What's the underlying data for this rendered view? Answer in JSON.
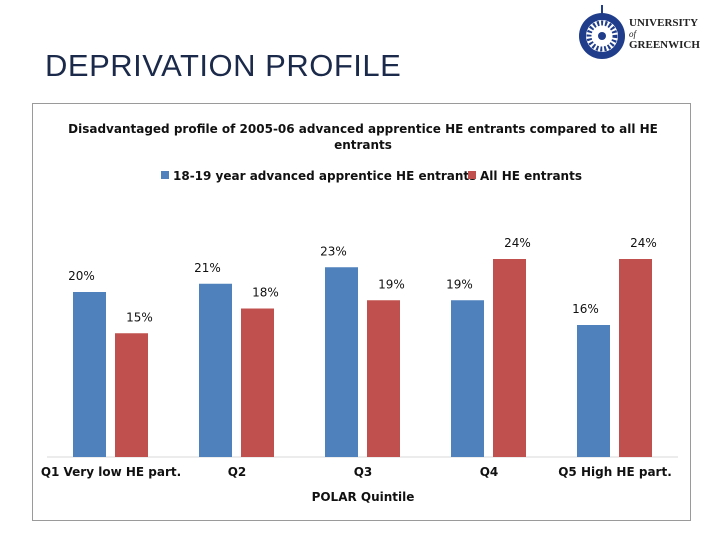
{
  "slide": {
    "title": "DEPRIVATION PROFILE"
  },
  "logo": {
    "line1": "UNIVERSITY",
    "line2": "of",
    "line3": "GREENWICH"
  },
  "chart_data": {
    "type": "bar",
    "title": "Disadvantaged profile of 2005-06 advanced apprentice HE entrants compared to all HE entrants",
    "title_lines": [
      "Disadvantaged profile of 2005-06 advanced apprentice HE entrants compared to all HE",
      "entrants"
    ],
    "xlabel": "POLAR Quintile",
    "ylabel": "",
    "categories": [
      "Q1 Very low HE part.",
      "Q2",
      "Q3",
      "Q4",
      "Q5 High HE part."
    ],
    "series": [
      {
        "name": "18-19 year advanced apprentice HE entrants",
        "values": [
          20,
          21,
          23,
          19,
          16
        ],
        "labels": [
          "20%",
          "21%",
          "23%",
          "19%",
          "16%"
        ],
        "color": "#4f81bd"
      },
      {
        "name": "All HE entrants",
        "values": [
          15,
          18,
          19,
          24,
          24
        ],
        "labels": [
          "15%",
          "18%",
          "19%",
          "24%",
          "24%"
        ],
        "color": "#c0504d"
      }
    ],
    "ylim": [
      0,
      30
    ],
    "grid": false,
    "legend": "top"
  }
}
